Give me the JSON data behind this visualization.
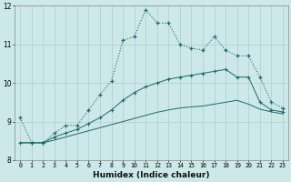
{
  "xlabel": "Humidex (Indice chaleur)",
  "background_color": "#cce8e8",
  "grid_color": "#b0cccc",
  "line_color": "#1a6b6b",
  "x_values": [
    0,
    1,
    2,
    3,
    4,
    5,
    6,
    7,
    8,
    9,
    10,
    11,
    12,
    13,
    14,
    15,
    16,
    17,
    18,
    19,
    20,
    21,
    22,
    23
  ],
  "series1": [
    9.1,
    8.45,
    8.45,
    8.7,
    8.9,
    8.9,
    9.3,
    9.7,
    10.05,
    11.1,
    11.2,
    11.9,
    11.55,
    11.55,
    11.0,
    10.9,
    10.85,
    11.2,
    10.85,
    10.7,
    10.7,
    10.15,
    9.5,
    9.35
  ],
  "series2": [
    8.45,
    8.45,
    8.45,
    8.6,
    8.7,
    8.8,
    8.95,
    9.1,
    9.3,
    9.55,
    9.75,
    9.9,
    10.0,
    10.1,
    10.15,
    10.2,
    10.25,
    10.3,
    10.35,
    10.15,
    10.15,
    9.5,
    9.3,
    9.25
  ],
  "series3": [
    8.45,
    8.45,
    8.45,
    8.52,
    8.6,
    8.68,
    8.76,
    8.84,
    8.92,
    9.0,
    9.08,
    9.16,
    9.24,
    9.3,
    9.35,
    9.38,
    9.4,
    9.45,
    9.5,
    9.55,
    9.45,
    9.32,
    9.25,
    9.2
  ],
  "ylim": [
    8.0,
    12.0
  ],
  "xlim": [
    -0.5,
    23.5
  ],
  "yticks": [
    8,
    9,
    10,
    11,
    12
  ],
  "xticks": [
    0,
    1,
    2,
    3,
    4,
    5,
    6,
    7,
    8,
    9,
    10,
    11,
    12,
    13,
    14,
    15,
    16,
    17,
    18,
    19,
    20,
    21,
    22,
    23
  ]
}
